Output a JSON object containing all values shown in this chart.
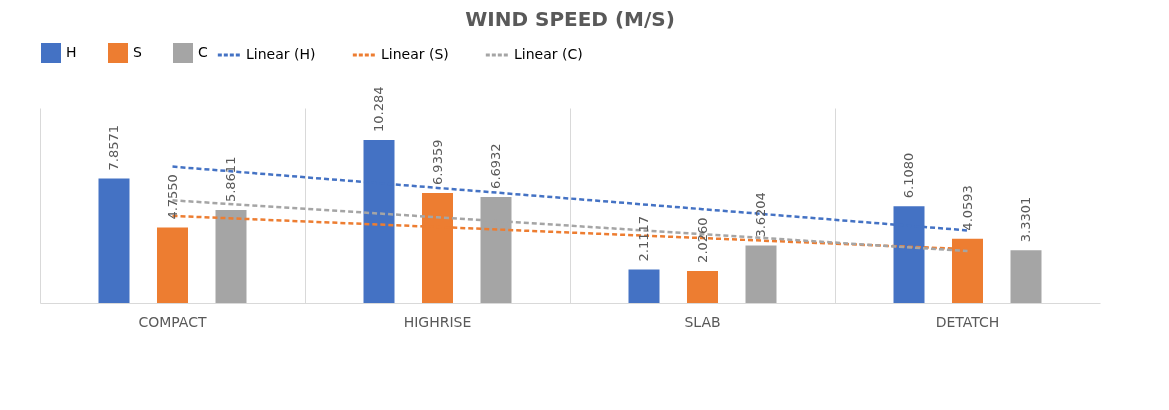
{
  "chart_data": {
    "type": "bar",
    "title": "WIND SPEED  (M/S)",
    "categories": [
      "COMPACT",
      "HIGHRISE",
      "SLAB",
      "DETATCH"
    ],
    "series": [
      {
        "name": "H",
        "color": "#4472c4",
        "values": [
          7.8571,
          10.284,
          2.1117,
          6.108
        ],
        "value_labels": [
          "7.8571",
          "10.284",
          "2.1117",
          "6.1080"
        ]
      },
      {
        "name": "S",
        "color": "#ed7d31",
        "values": [
          4.755,
          6.9359,
          2.026,
          4.0593
        ],
        "value_labels": [
          "4.7550",
          "6.9359",
          "2.0260",
          "4.0593"
        ]
      },
      {
        "name": "C",
        "color": "#a5a5a5",
        "values": [
          5.8611,
          6.6932,
          3.6204,
          3.3301
        ],
        "value_labels": [
          "5.8611",
          "6.6932",
          "3.6204",
          "3.3301"
        ]
      },
      {
        "name": "Linear (H)",
        "type": "line",
        "line_style": "dashed",
        "color": "#4472c4",
        "values": [
          8.603,
          7.261,
          5.919,
          4.577
        ]
      },
      {
        "name": "Linear (S)",
        "type": "line",
        "line_style": "dashed",
        "color": "#ed7d31",
        "values": [
          5.494,
          4.794,
          4.094,
          3.394
        ]
      },
      {
        "name": "Linear (C)",
        "type": "line",
        "line_style": "dashed",
        "color": "#a5a5a5",
        "values": [
          6.476,
          5.409,
          4.343,
          3.276
        ]
      }
    ],
    "ylim": [
      0,
      12.3
    ],
    "tick_labels": "x",
    "grid": "x",
    "legend": "top"
  }
}
